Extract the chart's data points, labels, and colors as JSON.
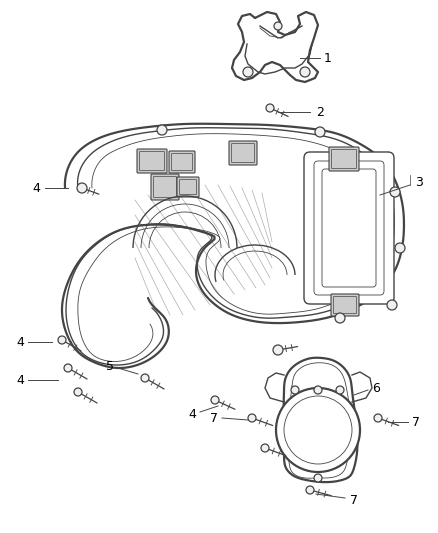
{
  "bg_color": "#ffffff",
  "line_color": "#444444",
  "label_color": "#000000",
  "fig_width": 4.38,
  "fig_height": 5.33,
  "dpi": 100,
  "part1_label": "1",
  "part2_label": "2",
  "part3_label": "3",
  "part4_label": "4",
  "part5_label": "5",
  "part6_label": "6",
  "part7_label": "7"
}
